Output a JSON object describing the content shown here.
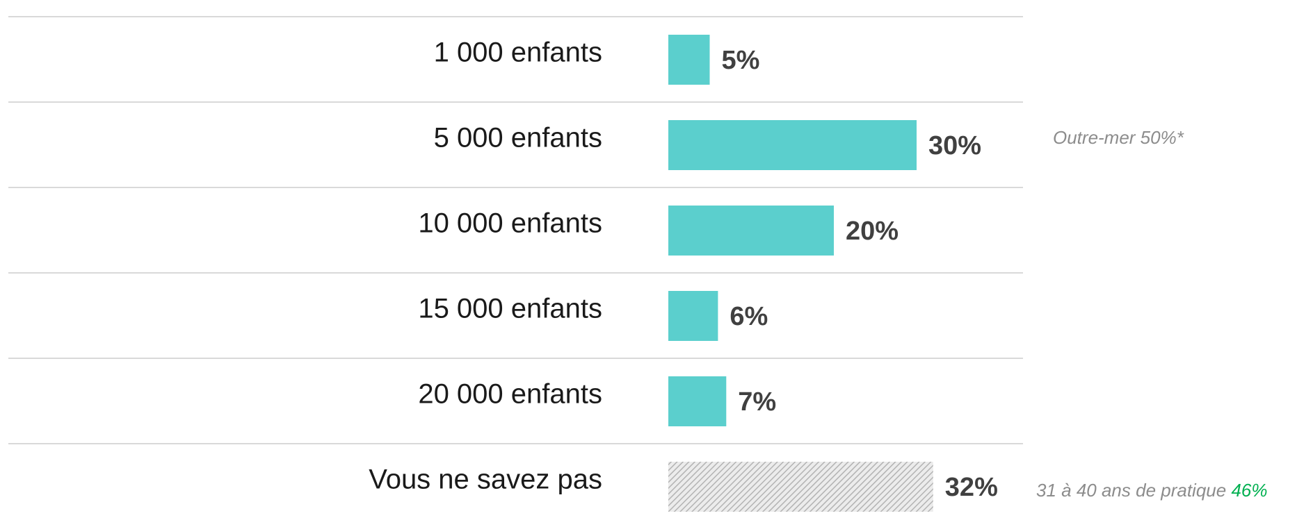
{
  "chart_data": {
    "type": "hbar",
    "categories": [
      "1 000 enfants",
      "5 000 enfants",
      "10 000 enfants",
      "15 000 enfants",
      "20 000 enfants",
      "Vous ne savez pas"
    ],
    "values": [
      5,
      30,
      20,
      6,
      7,
      32
    ],
    "value_labels": [
      "5%",
      "30%",
      "20%",
      "6%",
      "7%",
      "32%"
    ],
    "color": "#5bcfcd",
    "hatch_color": "#b3b3b3",
    "hatched": [
      false,
      false,
      false,
      false,
      false,
      true
    ],
    "annotations": [
      {
        "text": "Outre-mer 50%*"
      },
      {
        "text": "31 à 40 ans de pratique",
        "highlight": "46%",
        "highlight_color": "#00b050"
      }
    ]
  }
}
